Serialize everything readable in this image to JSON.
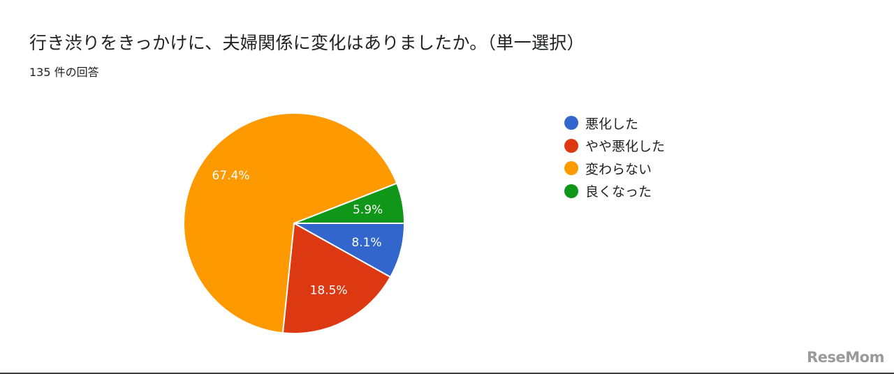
{
  "chart_data": {
    "type": "pie",
    "title": "行き渋りをきっかけに、夫婦関係に変化はありましたか。（単一選択）",
    "subtitle": "135 件の回答",
    "legend_position": "right",
    "slices": [
      {
        "label": "悪化した",
        "value": 8.1,
        "display": "8.1%",
        "color": "#3366cc"
      },
      {
        "label": "やや悪化した",
        "value": 18.5,
        "display": "18.5%",
        "color": "#dc3912"
      },
      {
        "label": "変わらない",
        "value": 67.4,
        "display": "67.4%",
        "color": "#ff9900"
      },
      {
        "label": "良くなった",
        "value": 5.9,
        "display": "5.9%",
        "color": "#109618"
      }
    ]
  },
  "watermark": {
    "text": "ReseMom"
  }
}
